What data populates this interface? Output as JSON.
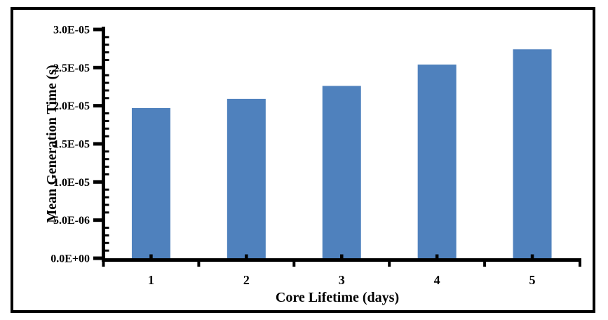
{
  "chart_data": {
    "type": "bar",
    "title": "",
    "categories": [
      "1",
      "2",
      "3",
      "4",
      "5"
    ],
    "values": [
      1.97e-05,
      2.09e-05,
      2.26e-05,
      2.54e-05,
      2.74e-05
    ],
    "xlabel": "Core Lifetime (days)",
    "ylabel": "Mean Generation Time (s)",
    "ylim": [
      0,
      3e-05
    ],
    "y_major_step": 5e-06,
    "y_minor_step": 1e-06,
    "y_tick_labels": [
      "0.0E+00",
      "5.0E-06",
      "1.0E-05",
      "1.5E-05",
      "2.0E-05",
      "2.5E-05",
      "3.0E-05"
    ],
    "grid": false,
    "legend": null,
    "colors": {
      "bar": "#4F81BD",
      "axis": "#000000",
      "text": "#000000",
      "frame_border": "#000000",
      "background": "#FFFFFF"
    }
  }
}
